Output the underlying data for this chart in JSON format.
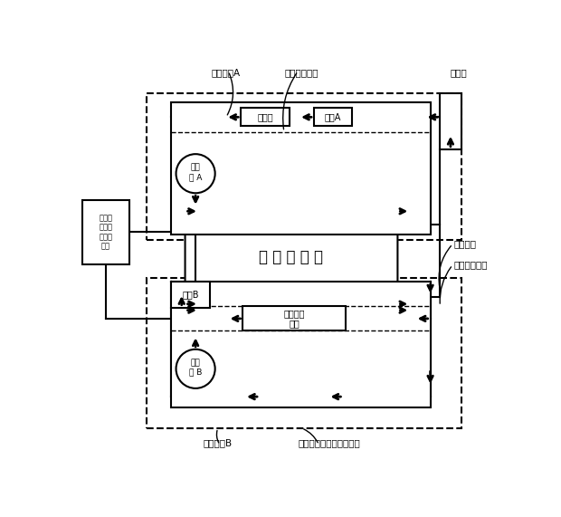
{
  "title": "",
  "bg_color": "#ffffff",
  "line_color": "#000000",
  "fig_width": 6.2,
  "fig_height": 5.71,
  "dpi": 100,
  "labels": {
    "top_left_label": "调控管路A",
    "top_mid_label": "充源调控回路",
    "top_right_label": "泄压口",
    "pump_a_label": "循环\n泵 A",
    "pump_b_label": "循环\n泵 B",
    "gas_source_label": "气源室",
    "membrane_a_label": "滤膜A",
    "membrane_b_label": "滤膜B",
    "chamber_label": "小 体 积 氡 室",
    "radon_meter_label": "氡子体监\n测仪",
    "mono_unit_label": "单分散\n性气溶\n胶产生\n单元",
    "sample_pipe_label": "采样管路",
    "sample_monitor_label": "采样监测回路",
    "control_pipe_b_label": "调控管路B",
    "radon_state_label": "氡子体状态参数调控回路"
  }
}
